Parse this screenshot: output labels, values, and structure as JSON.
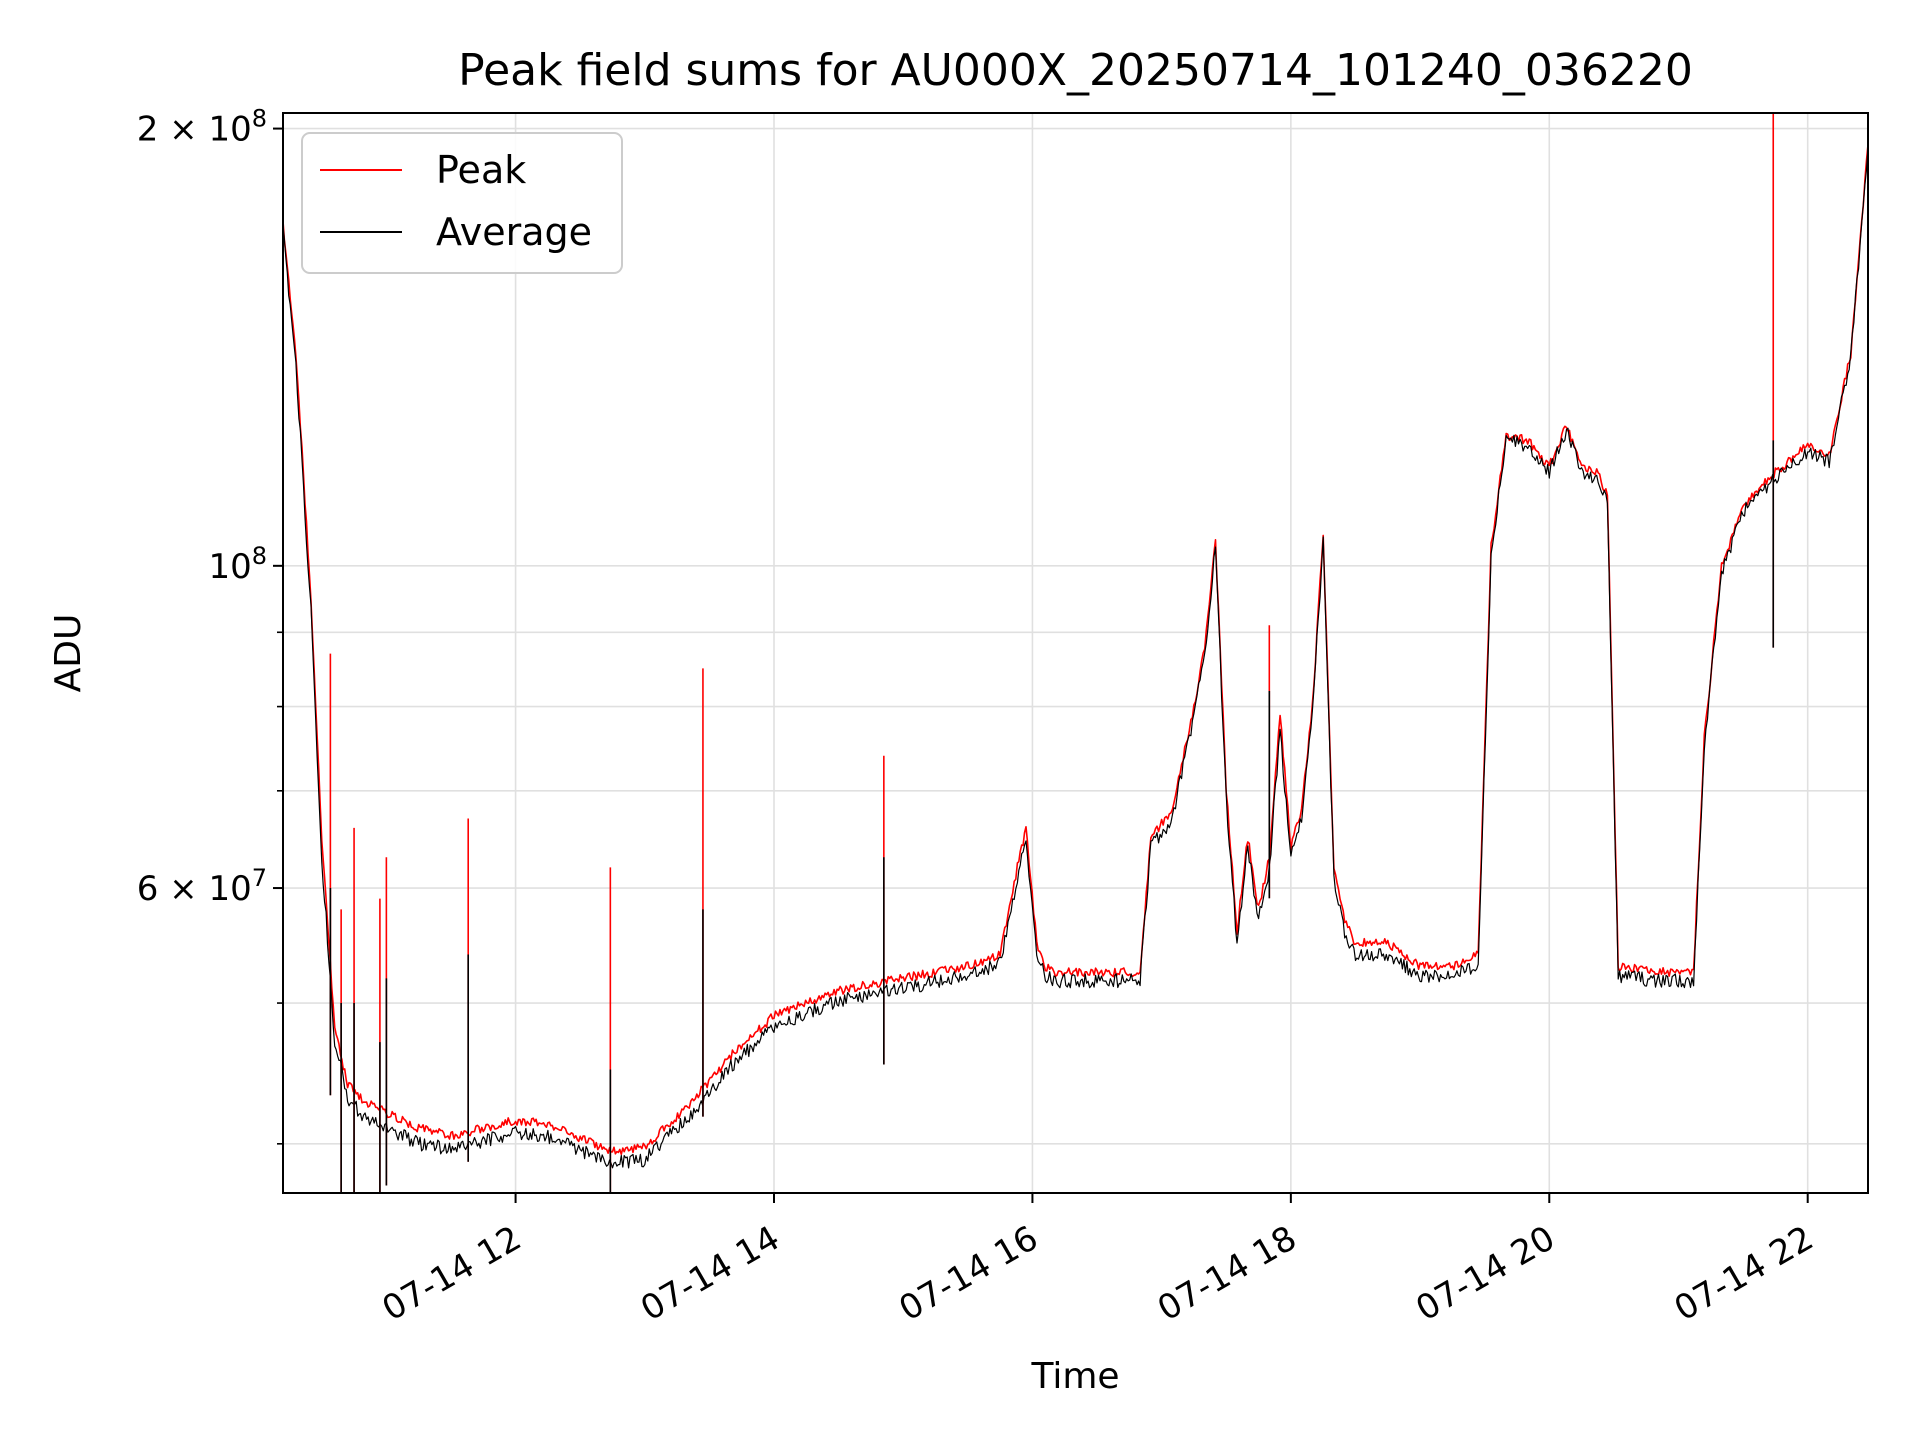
{
  "chart_data": {
    "type": "line",
    "title": "Peak field sums for AU000X_20250714_101240_036220",
    "xlabel": "Time",
    "ylabel": "ADU",
    "yscale": "log",
    "ylim": [
      37000000,
      205000000
    ],
    "xlim": [
      "07-14 10:12",
      "07-14 22:28"
    ],
    "grid": true,
    "legend_position": "top-left",
    "x_ticks": [
      "07-14 12",
      "07-14 14",
      "07-14 16",
      "07-14 18",
      "07-14 20",
      "07-14 22"
    ],
    "y_ticks": [
      {
        "label": "2 × 10",
        "exp": "8",
        "value": 200000000
      },
      {
        "label": "10",
        "exp": "8",
        "value": 100000000
      },
      {
        "label": "6 × 10",
        "exp": "7",
        "value": 60000000
      }
    ],
    "series": [
      {
        "name": "Peak",
        "color": "#ff0000",
        "x": [
          "07-14 10:12",
          "07-14 10:18",
          "07-14 10:25",
          "07-14 10:30",
          "07-14 10:36",
          "07-14 10:42",
          "07-14 10:48",
          "07-14 11:00",
          "07-14 11:15",
          "07-14 11:30",
          "07-14 11:45",
          "07-14 12:00",
          "07-14 12:15",
          "07-14 12:30",
          "07-14 12:45",
          "07-14 13:00",
          "07-14 13:20",
          "07-14 13:40",
          "07-14 14:00",
          "07-14 14:30",
          "07-14 15:00",
          "07-14 15:30",
          "07-14 15:45",
          "07-14 15:53",
          "07-14 15:57",
          "07-14 16:02",
          "07-14 16:06",
          "07-14 16:10",
          "07-14 16:30",
          "07-14 16:50",
          "07-14 16:55",
          "07-14 17:05",
          "07-14 17:15",
          "07-14 17:20",
          "07-14 17:25",
          "07-14 17:30",
          "07-14 17:35",
          "07-14 17:40",
          "07-14 17:45",
          "07-14 17:50",
          "07-14 17:55",
          "07-14 18:00",
          "07-14 18:05",
          "07-14 18:10",
          "07-14 18:15",
          "07-14 18:20",
          "07-14 18:25",
          "07-14 18:30",
          "07-14 18:45",
          "07-14 19:00",
          "07-14 19:15",
          "07-14 19:27",
          "07-14 19:33",
          "07-14 19:40",
          "07-14 19:50",
          "07-14 20:00",
          "07-14 20:08",
          "07-14 20:15",
          "07-14 20:22",
          "07-14 20:27",
          "07-14 20:32",
          "07-14 20:50",
          "07-14 21:07",
          "07-14 21:12",
          "07-14 21:20",
          "07-14 21:30",
          "07-14 21:45",
          "07-14 22:00",
          "07-14 22:10",
          "07-14 22:20",
          "07-14 22:28"
        ],
        "y": [
          172000000,
          140000000,
          95000000,
          65000000,
          48000000,
          44000000,
          43000000,
          42000000,
          41000000,
          40500000,
          41000000,
          41500000,
          41300000,
          40400000,
          39500000,
          39800000,
          42500000,
          46000000,
          49000000,
          51000000,
          52000000,
          53000000,
          54000000,
          62000000,
          66000000,
          55000000,
          53000000,
          52500000,
          52500000,
          52500000,
          65000000,
          68000000,
          80000000,
          88000000,
          104000000,
          70000000,
          56000000,
          65000000,
          58000000,
          63000000,
          79000000,
          64000000,
          68000000,
          80000000,
          105000000,
          62000000,
          57000000,
          55000000,
          55000000,
          53000000,
          53000000,
          54000000,
          103000000,
          123000000,
          122000000,
          117000000,
          125000000,
          117000000,
          116000000,
          112000000,
          53000000,
          52500000,
          52500000,
          76000000,
          100000000,
          110000000,
          116000000,
          121000000,
          119000000,
          140000000,
          195000000
        ]
      },
      {
        "name": "Average",
        "color": "#000000",
        "x": [
          "07-14 10:12",
          "07-14 10:18",
          "07-14 10:25",
          "07-14 10:30",
          "07-14 10:36",
          "07-14 10:42",
          "07-14 10:48",
          "07-14 11:00",
          "07-14 11:15",
          "07-14 11:30",
          "07-14 11:45",
          "07-14 12:00",
          "07-14 12:15",
          "07-14 12:30",
          "07-14 12:45",
          "07-14 13:00",
          "07-14 13:20",
          "07-14 13:40",
          "07-14 14:00",
          "07-14 14:30",
          "07-14 15:00",
          "07-14 15:30",
          "07-14 15:45",
          "07-14 15:53",
          "07-14 15:57",
          "07-14 16:02",
          "07-14 16:06",
          "07-14 16:10",
          "07-14 16:30",
          "07-14 16:50",
          "07-14 16:55",
          "07-14 17:05",
          "07-14 17:15",
          "07-14 17:20",
          "07-14 17:25",
          "07-14 17:30",
          "07-14 17:35",
          "07-14 17:40",
          "07-14 17:45",
          "07-14 17:50",
          "07-14 17:55",
          "07-14 18:00",
          "07-14 18:05",
          "07-14 18:10",
          "07-14 18:15",
          "07-14 18:20",
          "07-14 18:25",
          "07-14 18:30",
          "07-14 18:45",
          "07-14 19:00",
          "07-14 19:15",
          "07-14 19:27",
          "07-14 19:33",
          "07-14 19:40",
          "07-14 19:50",
          "07-14 20:00",
          "07-14 20:08",
          "07-14 20:15",
          "07-14 20:22",
          "07-14 20:27",
          "07-14 20:32",
          "07-14 20:50",
          "07-14 21:07",
          "07-14 21:12",
          "07-14 21:20",
          "07-14 21:30",
          "07-14 21:45",
          "07-14 22:00",
          "07-14 22:10",
          "07-14 22:20",
          "07-14 22:28"
        ],
        "y": [
          170000000,
          138000000,
          93000000,
          63000000,
          47000000,
          43000000,
          42000000,
          41000000,
          40000000,
          39700000,
          40200000,
          40700000,
          40500000,
          39600000,
          38800000,
          39000000,
          41700000,
          45200000,
          48200000,
          50200000,
          51200000,
          52200000,
          53200000,
          61000000,
          65000000,
          54000000,
          52200000,
          51800000,
          51800000,
          51800000,
          64000000,
          67000000,
          79000000,
          87000000,
          103000000,
          69000000,
          55000000,
          64000000,
          57000000,
          62000000,
          77000000,
          63000000,
          67000000,
          79000000,
          104000000,
          61000000,
          56000000,
          54000000,
          54000000,
          52200000,
          52200000,
          53200000,
          102000000,
          122000000,
          121000000,
          116000000,
          124000000,
          116000000,
          115000000,
          111000000,
          52200000,
          51800000,
          51800000,
          75000000,
          99000000,
          109000000,
          115000000,
          120000000,
          118000000,
          139000000,
          194000000
        ]
      }
    ],
    "spikes": [
      {
        "x": "07-14 10:34",
        "peak": 87000000,
        "average": 60000000
      },
      {
        "x": "07-14 10:39",
        "peak": 58000000,
        "average": 50000000
      },
      {
        "x": "07-14 10:45",
        "peak": 66000000,
        "average": 50000000
      },
      {
        "x": "07-14 10:57",
        "peak": 59000000,
        "average": 47000000
      },
      {
        "x": "07-14 11:00",
        "peak": 63000000,
        "average": 52000000
      },
      {
        "x": "07-14 11:38",
        "peak": 67000000,
        "average": 54000000
      },
      {
        "x": "07-14 12:44",
        "peak": 62000000,
        "average": 45000000
      },
      {
        "x": "07-14 13:27",
        "peak": 85000000,
        "average": 58000000
      },
      {
        "x": "07-14 14:51",
        "peak": 74000000,
        "average": 63000000
      },
      {
        "x": "07-14 17:50",
        "peak": 91000000,
        "average": 82000000
      },
      {
        "x": "07-14 21:44",
        "peak": 205000000,
        "average": 122000000
      }
    ]
  }
}
